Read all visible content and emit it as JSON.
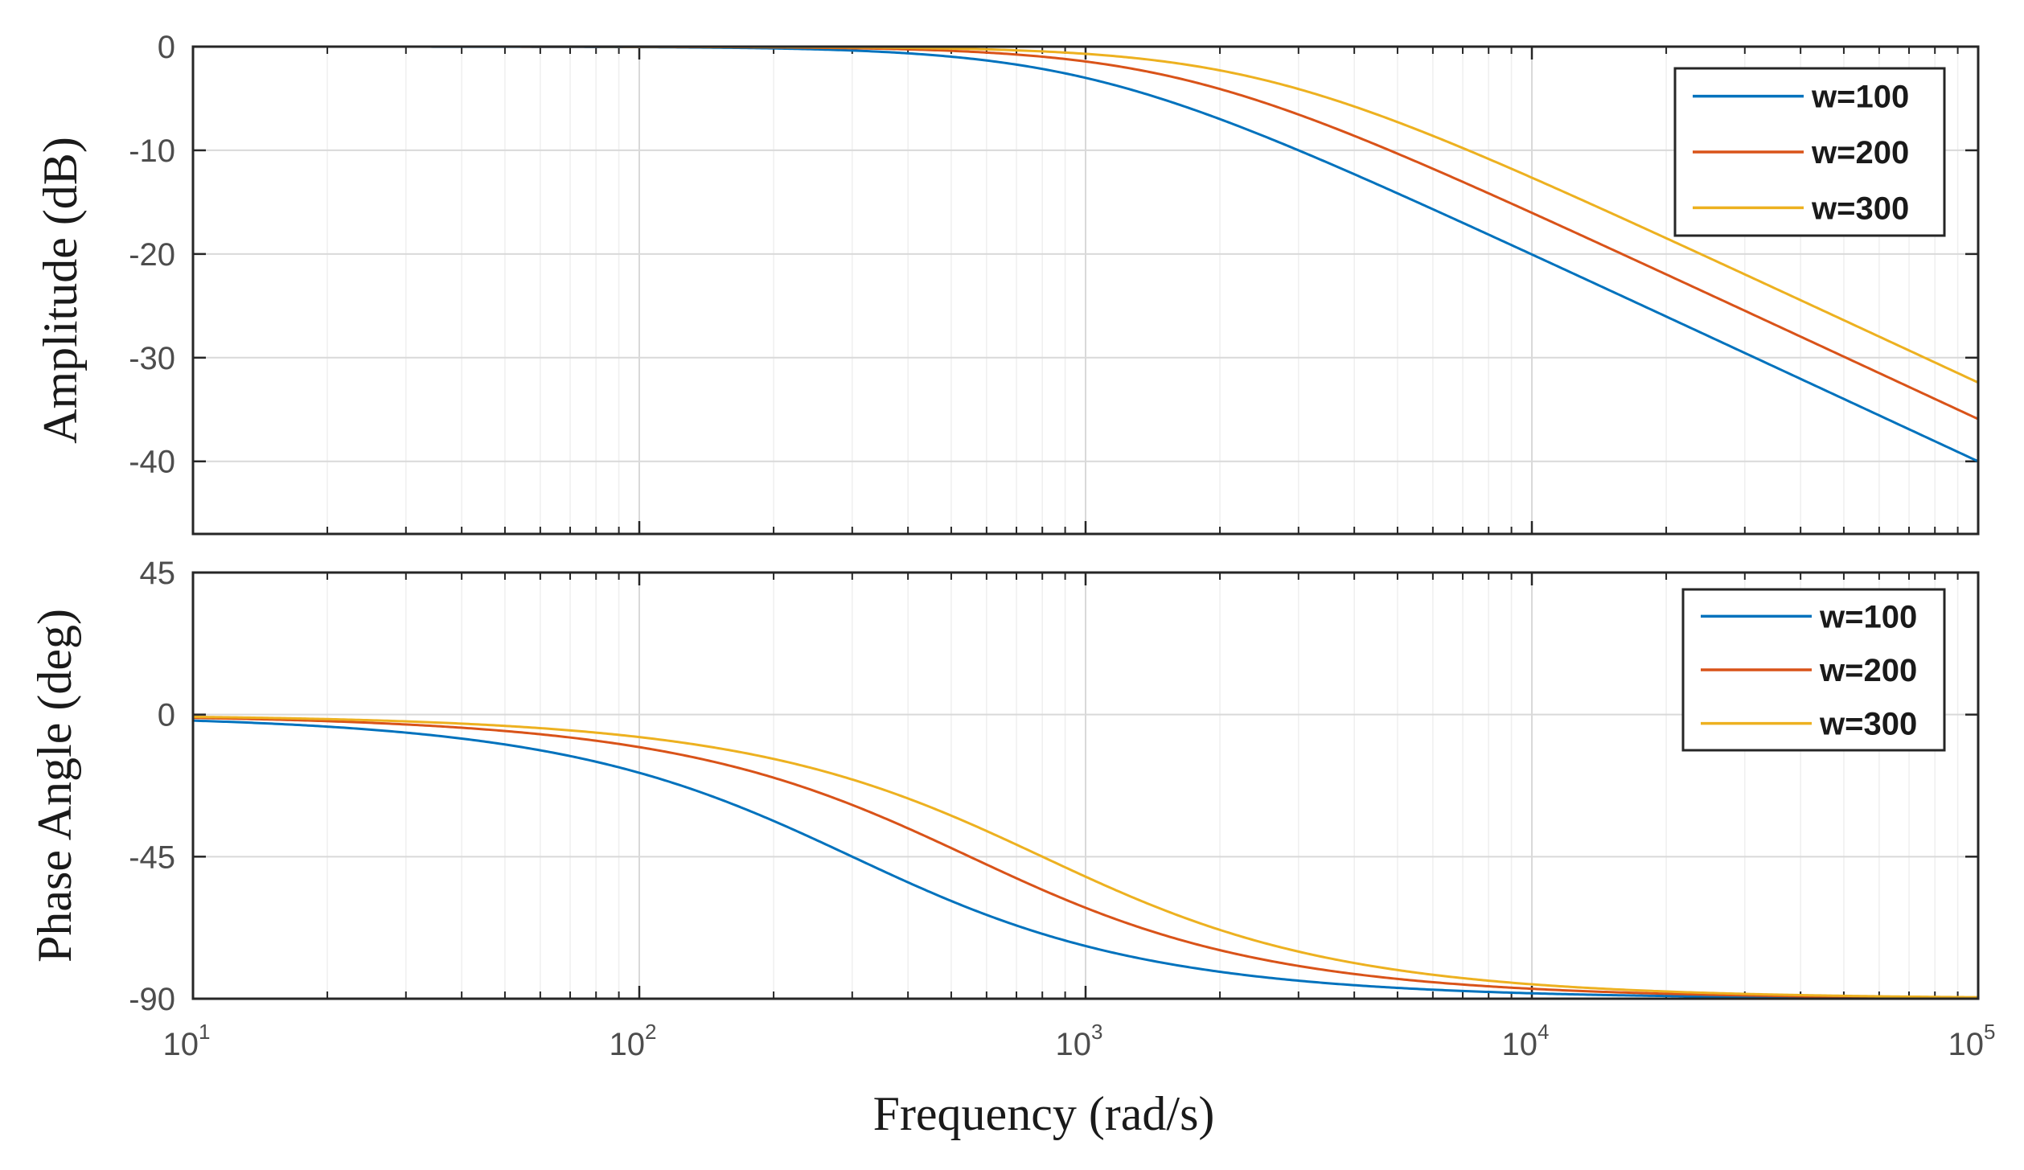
{
  "chart_data": [
    {
      "type": "line",
      "panel": "amplitude",
      "ylabel": "Amplitude (dB)",
      "xscale": "log",
      "xlim": [
        10,
        100000
      ],
      "ylim": [
        -47,
        0
      ],
      "yticks": [
        0,
        -10,
        -20,
        -30,
        -40
      ],
      "ytick_labels": [
        "0",
        "-10",
        "-20",
        "-30",
        "-40"
      ],
      "grid": true,
      "legend": "top-right",
      "series": [
        {
          "name": "w=100",
          "color": "#0072bd",
          "cutoff": 1000
        },
        {
          "name": "w=200",
          "color": "#d95319",
          "cutoff": 1600
        },
        {
          "name": "w=300",
          "color": "#edb120",
          "cutoff": 2400
        }
      ]
    },
    {
      "type": "line",
      "panel": "phase",
      "ylabel": "Phase Angle (deg)",
      "xlabel": "Frequency (rad/s)",
      "xscale": "log",
      "xlim": [
        10,
        100000
      ],
      "ylim": [
        -90,
        45
      ],
      "yticks": [
        45,
        0,
        -45,
        -90
      ],
      "ytick_labels": [
        "45",
        "0",
        "-45",
        "-90"
      ],
      "grid": true,
      "legend": "top-right",
      "series": [
        {
          "name": "w=100",
          "color": "#0072bd",
          "cutoff": 300
        },
        {
          "name": "w=200",
          "color": "#d95319",
          "cutoff": 550
        },
        {
          "name": "w=300",
          "color": "#edb120",
          "cutoff": 800
        }
      ]
    }
  ],
  "x_tick_labels": [
    {
      "base": "10",
      "exp": "1"
    },
    {
      "base": "10",
      "exp": "2"
    },
    {
      "base": "10",
      "exp": "3"
    },
    {
      "base": "10",
      "exp": "4"
    },
    {
      "base": "10",
      "exp": "5"
    }
  ]
}
